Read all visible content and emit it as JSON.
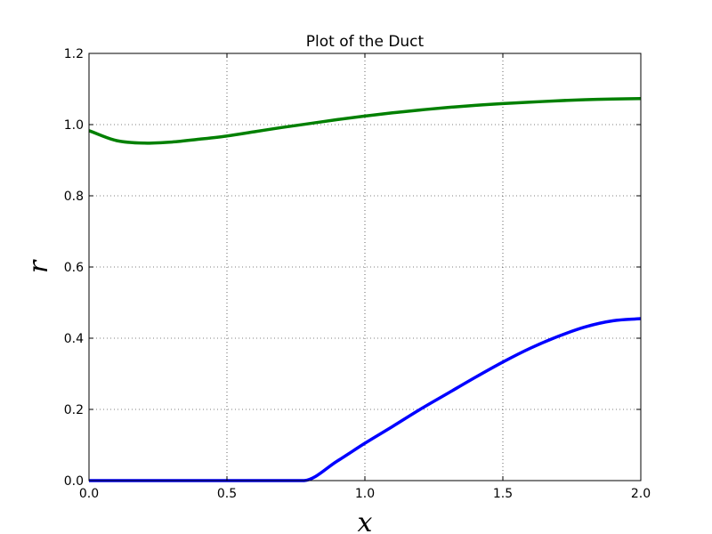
{
  "chart_data": {
    "type": "line",
    "title": "Plot of the Duct",
    "xlabel": "x",
    "ylabel": "r",
    "xlim": [
      0.0,
      2.0
    ],
    "ylim": [
      0.0,
      1.2
    ],
    "xticks": [
      0.0,
      0.5,
      1.0,
      1.5,
      2.0
    ],
    "xtick_labels": [
      "0.0",
      "0.5",
      "1.0",
      "1.5",
      "2.0"
    ],
    "yticks": [
      0.0,
      0.2,
      0.4,
      0.6,
      0.8,
      1.0,
      1.2
    ],
    "ytick_labels": [
      "0.0",
      "0.2",
      "0.4",
      "0.6",
      "0.8",
      "1.0",
      "1.2"
    ],
    "grid": true,
    "legend": "none",
    "series": [
      {
        "color": "#008000",
        "x": [
          0.0,
          0.1,
          0.2,
          0.3,
          0.4,
          0.5,
          0.6,
          0.7,
          0.8,
          0.9,
          1.0,
          1.1,
          1.2,
          1.3,
          1.4,
          1.5,
          1.6,
          1.7,
          1.8,
          1.9,
          2.0
        ],
        "y": [
          0.983,
          0.955,
          0.948,
          0.951,
          0.959,
          0.968,
          0.98,
          0.992,
          1.003,
          1.014,
          1.024,
          1.033,
          1.041,
          1.048,
          1.054,
          1.059,
          1.063,
          1.067,
          1.07,
          1.072,
          1.073
        ]
      },
      {
        "color": "#0000ff",
        "x": [
          0.0,
          0.78,
          0.9,
          1.0,
          1.1,
          1.2,
          1.3,
          1.4,
          1.5,
          1.6,
          1.7,
          1.8,
          1.9,
          2.0
        ],
        "y": [
          0.0,
          0.0,
          0.055,
          0.105,
          0.152,
          0.2,
          0.245,
          0.29,
          0.333,
          0.372,
          0.405,
          0.432,
          0.449,
          0.455
        ]
      }
    ]
  }
}
